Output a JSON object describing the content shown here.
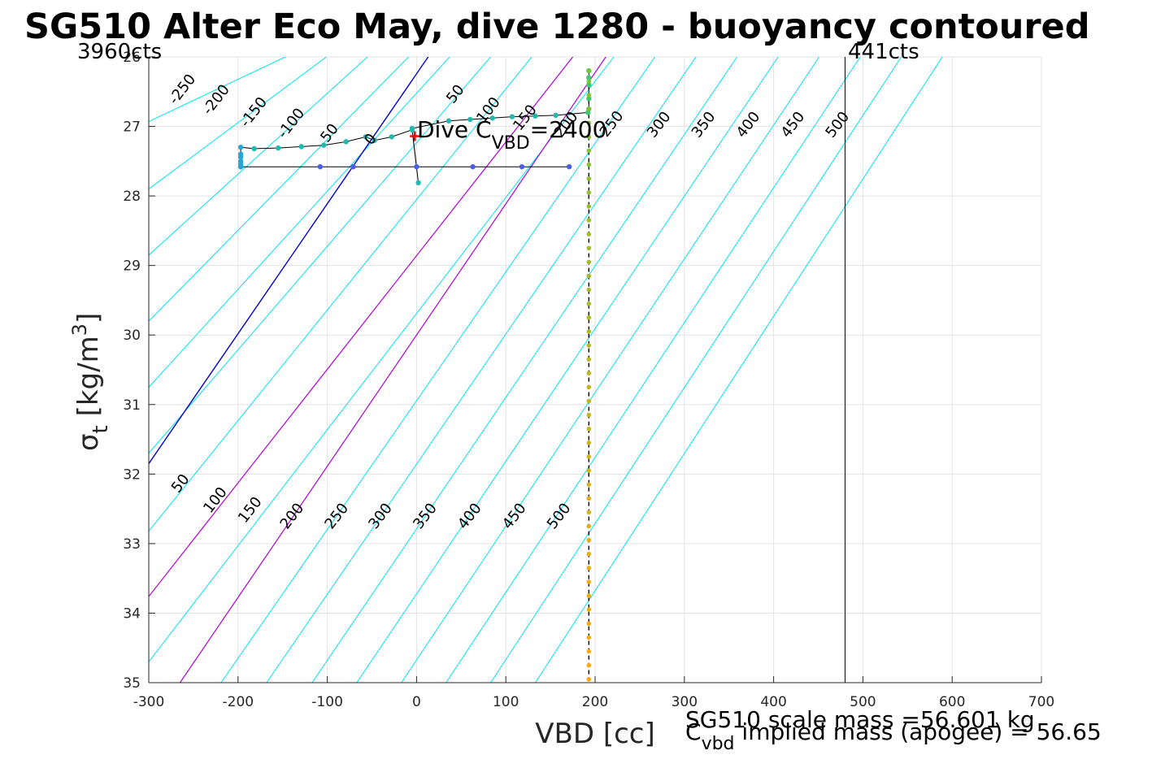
{
  "chart_data": {
    "type": "line",
    "title": "SG510 Alter Eco May, dive 1280 - buoyancy contoured",
    "xlabel": "VBD [cc]",
    "ylabel_main": "σ",
    "ylabel_sub": "t",
    "ylabel_unit": " [kg/m",
    "ylabel_sup": "3",
    "ylabel_close": "]",
    "xlim": [
      -300,
      700
    ],
    "ylim": [
      26,
      35
    ],
    "y_reversed": true,
    "grid": true,
    "xticks": [
      -300,
      -200,
      -100,
      0,
      100,
      200,
      300,
      400,
      500,
      600,
      700
    ],
    "yticks": [
      26,
      27,
      28,
      29,
      30,
      31,
      32,
      33,
      34,
      35
    ],
    "colors": {
      "contour": "#00e5ee",
      "blue_line": "#0000cc",
      "purple_line": "#b000d8",
      "track": "#000000",
      "marker": "#ff0000"
    },
    "contours_upper": {
      "labels": [
        "-250",
        "-200",
        "-150",
        "-100",
        "50",
        "0",
        "50",
        "100",
        "150",
        "200",
        "250",
        "300",
        "350",
        "400",
        "450",
        "500"
      ],
      "label_points": [
        [
          -262,
          26.47
        ],
        [
          -224,
          26.62
        ],
        [
          -182,
          26.8
        ],
        [
          -140,
          26.96
        ],
        [
          -97,
          27.1
        ],
        [
          -51,
          27.19
        ],
        [
          44,
          26.54
        ],
        [
          81,
          26.77
        ],
        [
          122,
          26.88
        ],
        [
          168,
          26.98
        ],
        [
          219,
          26.97
        ],
        [
          272,
          26.98
        ],
        [
          322,
          26.98
        ],
        [
          372,
          26.98
        ],
        [
          422,
          26.98
        ],
        [
          472,
          26.98
        ]
      ]
    },
    "contours_lower": {
      "labels": [
        "50",
        "100",
        "150",
        "200",
        "250",
        "300",
        "350",
        "400",
        "450",
        "500"
      ],
      "label_points": [
        [
          -264,
          32.14
        ],
        [
          -225,
          32.38
        ],
        [
          -186,
          32.52
        ],
        [
          -139,
          32.61
        ],
        [
          -89,
          32.61
        ],
        [
          -40,
          32.61
        ],
        [
          10,
          32.61
        ],
        [
          60,
          32.61
        ],
        [
          110,
          32.61
        ],
        [
          160,
          32.61
        ]
      ]
    },
    "cyan_lines": [
      [
        [
          -300,
          26.93
        ],
        [
          -147,
          26
        ]
      ],
      [
        [
          -300,
          27.9
        ],
        [
          -101,
          26
        ]
      ],
      [
        [
          -300,
          28.85
        ],
        [
          -55,
          26
        ]
      ],
      [
        [
          -300,
          29.8
        ],
        [
          -9,
          26
        ]
      ],
      [
        [
          -300,
          30.75
        ],
        [
          37,
          26
        ]
      ],
      [
        [
          -300,
          31.7
        ],
        [
          83,
          26
        ]
      ],
      [
        [
          -300,
          32.82
        ],
        [
          129,
          26
        ]
      ],
      [
        [
          -300,
          34.7
        ],
        [
          221,
          26
        ]
      ],
      [
        [
          -219,
          35
        ],
        [
          267,
          26
        ]
      ],
      [
        [
          -168,
          35
        ],
        [
          313,
          26
        ]
      ],
      [
        [
          -117,
          35
        ],
        [
          359,
          26
        ]
      ],
      [
        [
          -67,
          35
        ],
        [
          405,
          26
        ]
      ],
      [
        [
          -17,
          35
        ],
        [
          451,
          26
        ]
      ],
      [
        [
          33,
          35
        ],
        [
          497,
          26
        ]
      ],
      [
        [
          83,
          35
        ],
        [
          543,
          26
        ]
      ],
      [
        [
          133,
          35
        ],
        [
          589,
          26
        ]
      ]
    ],
    "blue_line": [
      [
        -300,
        31.85
      ],
      [
        13,
        26
      ]
    ],
    "purple_lines": [
      [
        [
          -300,
          33.76
        ],
        [
          175,
          26
        ]
      ],
      [
        [
          -265,
          35
        ],
        [
          212,
          26
        ]
      ]
    ],
    "vertical_line": 480,
    "dashed_vertical": 193,
    "dive_track": [
      [
        -197,
        27.58
      ],
      [
        -108,
        27.58
      ],
      [
        -71,
        27.58
      ],
      [
        0,
        27.58
      ],
      [
        63,
        27.58
      ],
      [
        118,
        27.58
      ],
      [
        171,
        27.58
      ],
      [
        -197,
        27.58
      ],
      [
        -197,
        27.54
      ],
      [
        -197,
        27.5
      ],
      [
        -197,
        27.44
      ],
      [
        -197,
        27.4
      ],
      [
        -197,
        27.3
      ],
      [
        -182,
        27.32
      ],
      [
        -155,
        27.31
      ],
      [
        -129,
        27.29
      ],
      [
        -104,
        27.27
      ],
      [
        -79,
        27.22
      ],
      [
        -57,
        27.15
      ],
      [
        -47,
        27.2
      ],
      [
        -28,
        27.15
      ],
      [
        -5,
        27.05
      ],
      [
        2,
        27.81
      ],
      [
        -5,
        27.03
      ],
      [
        36,
        26.92
      ],
      [
        60,
        26.9
      ],
      [
        85,
        26.88
      ],
      [
        107,
        26.86
      ],
      [
        133,
        26.85
      ],
      [
        156,
        26.84
      ],
      [
        192,
        26.8
      ],
      [
        193,
        26.75
      ],
      [
        193,
        26.6
      ],
      [
        193,
        26.4
      ],
      [
        193,
        26.3
      ],
      [
        193,
        26.2
      ]
    ],
    "ascent_points_y": [
      26.2,
      26.35,
      26.55,
      26.75,
      26.95,
      27.15,
      27.35,
      27.55,
      27.75,
      27.95,
      28.15,
      28.35,
      28.55,
      28.75,
      28.95,
      29.15,
      29.35,
      29.55,
      29.75,
      29.95,
      30.15,
      30.35,
      30.55,
      30.75,
      30.95,
      31.15,
      31.35,
      31.55,
      31.75,
      31.95,
      32.15,
      32.35,
      32.55,
      32.75,
      32.95,
      33.15,
      33.35,
      33.55,
      33.75,
      33.95,
      34.15,
      34.35,
      34.55,
      34.75,
      34.95
    ],
    "ascent_x": 193,
    "marker": [
      -2,
      27.14
    ],
    "annotations": {
      "left_counts": "3960cts",
      "right_counts": "441cts",
      "dive_c_prefix": "Dive C",
      "dive_c_sub": "VBD",
      "dive_c_value": "=2400",
      "mass_line1": "SG510 scale mass =56.601 kg",
      "mass_line2_prefix": "C",
      "mass_line2_sub": "vbd",
      "mass_line2_rest": " implied mass (apogee) = 56.65"
    }
  }
}
